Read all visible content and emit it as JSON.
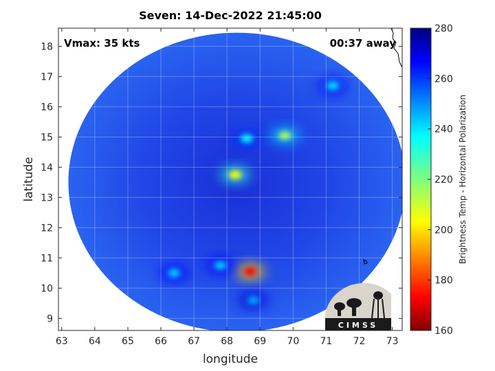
{
  "chart_data": {
    "type": "heatmap",
    "title": "Seven: 14-Dec-2022 21:45:00",
    "xlabel": "longitude",
    "ylabel": "latitude",
    "xlim": [
      62.9,
      73.3
    ],
    "ylim": [
      8.6,
      18.6
    ],
    "x_ticks": [
      "63",
      "64",
      "65",
      "66",
      "67",
      "68",
      "69",
      "70",
      "71",
      "72",
      "73"
    ],
    "y_ticks": [
      "9",
      "10",
      "11",
      "12",
      "13",
      "14",
      "15",
      "16",
      "17",
      "18"
    ],
    "grid": true,
    "annotations": {
      "left": "Vmax: 35 kts",
      "right": "00:37 away"
    },
    "colorbar": {
      "label": "Brightness Temp - Horizontal Polarization",
      "range": [
        160,
        280
      ],
      "ticks": [
        "160",
        "180",
        "200",
        "220",
        "240",
        "260",
        "280"
      ],
      "colormap": "jet"
    },
    "swath": {
      "center_lon": 68.3,
      "center_lat": 13.5,
      "radius_lon": 5.1,
      "radius_lat": 4.95,
      "background_value": 258
    },
    "features": [
      {
        "name": "eye-wall",
        "lon": 68.25,
        "lat": 13.75,
        "value": 205
      },
      {
        "name": "north-band",
        "lon": 68.6,
        "lat": 14.95,
        "value": 235
      },
      {
        "name": "south-convection",
        "lon": 68.7,
        "lat": 10.55,
        "value": 175
      },
      {
        "name": "south-band",
        "lon": 67.8,
        "lat": 10.75,
        "value": 240
      },
      {
        "name": "south-west-band",
        "lon": 66.4,
        "lat": 10.5,
        "value": 240
      },
      {
        "name": "north-east-cells",
        "lon": 71.2,
        "lat": 16.7,
        "value": 238
      },
      {
        "name": "seam-cell",
        "lon": 69.75,
        "lat": 15.05,
        "value": 215
      },
      {
        "name": "south-plume",
        "lon": 68.8,
        "lat": 9.6,
        "value": 245
      }
    ]
  },
  "logo": {
    "text": "CIMSS"
  }
}
